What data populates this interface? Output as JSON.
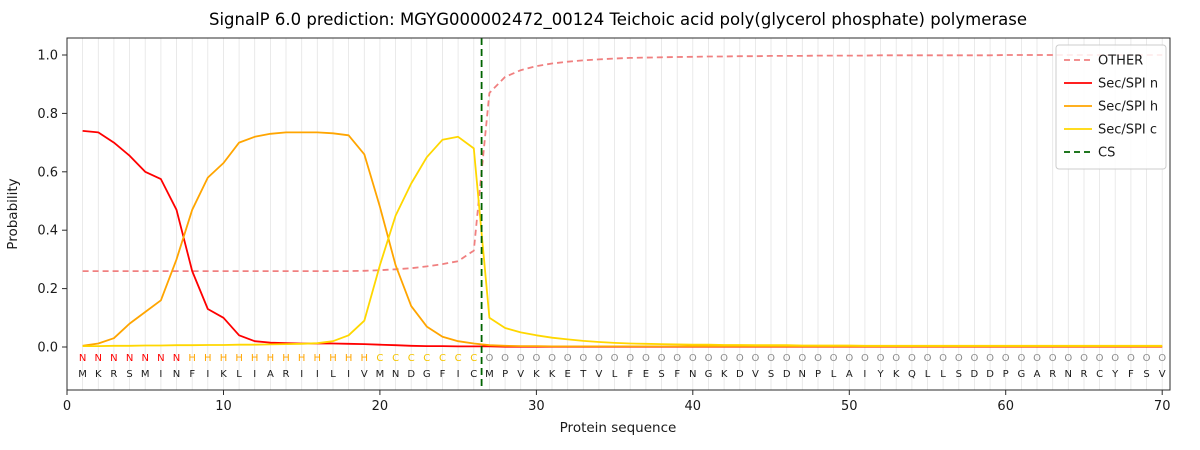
{
  "chart_data": {
    "type": "line",
    "title": "SignalP 6.0 prediction: MGYG000002472_00124 Teichoic acid poly(glycerol phosphate) polymerase",
    "xlabel": "Protein sequence",
    "ylabel": "Probability",
    "xlim": [
      0,
      70.5
    ],
    "ylim": [
      -0.147,
      1.058
    ],
    "xticks": [
      0,
      10,
      20,
      30,
      40,
      50,
      60,
      70
    ],
    "yticks": [
      0.0,
      0.2,
      0.4,
      0.6,
      0.8,
      1.0
    ],
    "grid": "vertical-line-per-residue",
    "legend_position": "upper right",
    "sequence": "MKRSMINFIKLIARIILIVMNDGFICMPVKKETVLFESFNGKDVSDNPLAIYKQLLSDDPGARNRCYFSV",
    "regions": "NNNNNNNHHHHHHHHHHHHCCCCCCCOOOOOOOOOOOOOOOOOOOOOOOOOOOOOOOOOOOOOOOOOOOO",
    "region_colors": {
      "N": "#ff0000",
      "H": "#ffa500",
      "C": "#f5c400",
      "O": "#8c8c8c"
    },
    "cs_between_positions": "26-27",
    "series": [
      {
        "name": "OTHER",
        "color": "#f08080",
        "dash": true,
        "values": [
          0.26,
          0.26,
          0.26,
          0.26,
          0.26,
          0.26,
          0.26,
          0.26,
          0.26,
          0.26,
          0.26,
          0.26,
          0.26,
          0.26,
          0.26,
          0.26,
          0.26,
          0.26,
          0.261,
          0.263,
          0.266,
          0.27,
          0.276,
          0.284,
          0.294,
          0.33,
          0.87,
          0.925,
          0.948,
          0.962,
          0.971,
          0.977,
          0.982,
          0.985,
          0.988,
          0.99,
          0.991,
          0.992,
          0.993,
          0.994,
          0.995,
          0.995,
          0.996,
          0.996,
          0.997,
          0.997,
          0.997,
          0.998,
          0.998,
          0.998,
          0.998,
          0.999,
          0.999,
          0.999,
          0.999,
          0.999,
          0.999,
          0.999,
          0.999,
          1.0,
          1.0,
          1.0,
          1.0,
          1.0,
          1.0,
          1.0,
          1.0,
          1.0,
          1.0,
          1.0
        ]
      },
      {
        "name": "Sec/SPI n",
        "color": "#ff0000",
        "dash": false,
        "values": [
          0.74,
          0.735,
          0.7,
          0.655,
          0.6,
          0.575,
          0.47,
          0.26,
          0.13,
          0.1,
          0.04,
          0.02,
          0.015,
          0.013,
          0.012,
          0.012,
          0.012,
          0.011,
          0.01,
          0.008,
          0.006,
          0.004,
          0.003,
          0.003,
          0.002,
          0.002,
          0.002,
          0.001,
          0.001,
          0.001,
          0.001,
          0.001,
          0.001,
          0.001,
          0.001,
          0.001,
          0.001,
          0.001,
          0.001,
          0.001,
          0.001,
          0.001,
          0.001,
          0.001,
          0.001,
          0.001,
          0.001,
          0.001,
          0.001,
          0.001,
          0.001,
          0.001,
          0.001,
          0.001,
          0.001,
          0.001,
          0.001,
          0.001,
          0.001,
          0.001,
          0.001,
          0.001,
          0.001,
          0.001,
          0.001,
          0.001,
          0.001,
          0.001,
          0.001,
          0.001
        ]
      },
      {
        "name": "Sec/SPI h",
        "color": "#ffa500",
        "dash": false,
        "values": [
          0.004,
          0.012,
          0.03,
          0.08,
          0.12,
          0.16,
          0.3,
          0.47,
          0.58,
          0.63,
          0.7,
          0.72,
          0.73,
          0.735,
          0.735,
          0.735,
          0.732,
          0.725,
          0.66,
          0.48,
          0.28,
          0.14,
          0.07,
          0.035,
          0.02,
          0.012,
          0.006,
          0.004,
          0.003,
          0.003,
          0.002,
          0.002,
          0.002,
          0.002,
          0.002,
          0.002,
          0.002,
          0.002,
          0.002,
          0.002,
          0.002,
          0.002,
          0.002,
          0.002,
          0.002,
          0.002,
          0.002,
          0.002,
          0.002,
          0.002,
          0.002,
          0.002,
          0.002,
          0.002,
          0.002,
          0.002,
          0.002,
          0.002,
          0.002,
          0.002,
          0.002,
          0.002,
          0.002,
          0.002,
          0.002,
          0.002,
          0.002,
          0.002,
          0.002,
          0.002
        ]
      },
      {
        "name": "Sec/SPI c",
        "color": "#ffd700",
        "dash": false,
        "values": [
          0.003,
          0.003,
          0.004,
          0.004,
          0.005,
          0.005,
          0.006,
          0.006,
          0.007,
          0.007,
          0.008,
          0.008,
          0.009,
          0.01,
          0.011,
          0.013,
          0.02,
          0.04,
          0.09,
          0.28,
          0.45,
          0.56,
          0.65,
          0.71,
          0.72,
          0.68,
          0.1,
          0.065,
          0.05,
          0.04,
          0.032,
          0.026,
          0.021,
          0.017,
          0.014,
          0.012,
          0.011,
          0.01,
          0.009,
          0.008,
          0.008,
          0.007,
          0.007,
          0.006,
          0.006,
          0.006,
          0.005,
          0.005,
          0.005,
          0.005,
          0.004,
          0.004,
          0.004,
          0.004,
          0.004,
          0.004,
          0.004,
          0.004,
          0.004,
          0.004,
          0.004,
          0.004,
          0.004,
          0.004,
          0.004,
          0.004,
          0.004,
          0.004,
          0.004,
          0.004
        ]
      },
      {
        "name": "CS",
        "color": "#006400",
        "dash": true,
        "vline_x": 26.5
      }
    ]
  }
}
